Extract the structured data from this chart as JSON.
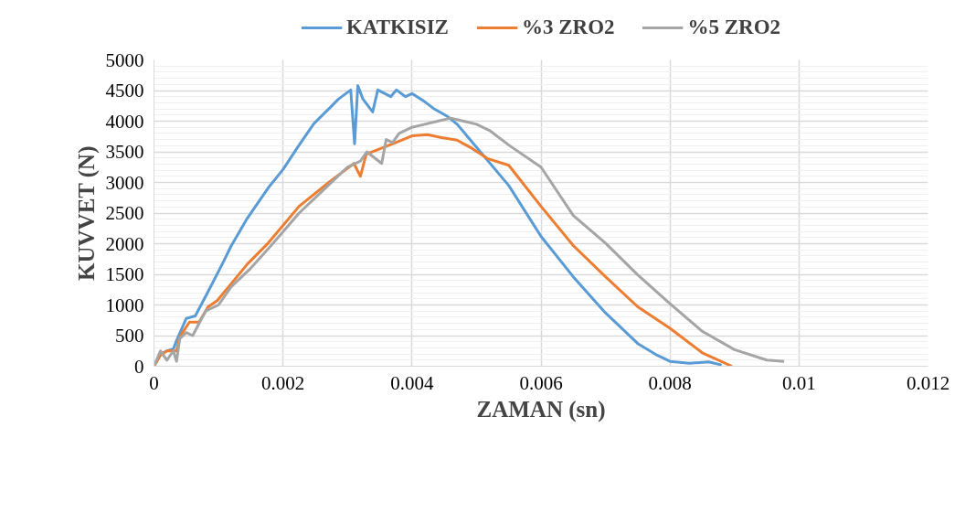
{
  "chart_data": {
    "type": "line",
    "xlabel": "ZAMAN (sn)",
    "ylabel": "KUVVET (N)",
    "xlim": [
      0,
      0.012
    ],
    "xticks": [
      {
        "value": 0,
        "label": "0"
      },
      0.002,
      0.004,
      0.006,
      0.008,
      0.01,
      0.012
    ],
    "ylim": [
      0,
      5000
    ],
    "yticks": [
      0,
      500,
      1000,
      1500,
      2000,
      2500,
      3000,
      3500,
      4000,
      4500,
      5000
    ],
    "grid": true,
    "legend": "top",
    "marker": "none",
    "line_style": "solid",
    "series": [
      {
        "name": "KATKISIZ",
        "color": "#5b9bd5",
        "x": [
          0,
          0.0001,
          0.0002,
          0.0003,
          0.00035,
          0.0005,
          0.00064,
          0.00084,
          0.00106,
          0.0012,
          0.00145,
          0.00177,
          0.002,
          0.00225,
          0.00248,
          0.00272,
          0.00286,
          0.00305,
          0.00311,
          0.00316,
          0.00324,
          0.00339,
          0.00347,
          0.00367,
          0.00376,
          0.0039,
          0.004,
          0.00418,
          0.00433,
          0.00456,
          0.0047,
          0.0055,
          0.006,
          0.0065,
          0.007,
          0.0075,
          0.0078,
          0.008,
          0.0083,
          0.0086,
          0.0088
        ],
        "values": [
          0,
          200,
          250,
          280,
          420,
          780,
          820,
          1220,
          1670,
          1970,
          2420,
          2910,
          3210,
          3610,
          3960,
          4210,
          4360,
          4510,
          3630,
          4580,
          4360,
          4150,
          4510,
          4400,
          4510,
          4400,
          4450,
          4330,
          4210,
          4070,
          3950,
          2950,
          2120,
          1460,
          870,
          370,
          180,
          80,
          50,
          70,
          20
        ]
      },
      {
        "name": "%3 ZRO2",
        "color": "#ed7d31",
        "x": [
          0,
          0.0001,
          0.0002,
          0.00035,
          0.0004,
          0.00055,
          0.0007,
          0.00084,
          0.00098,
          0.00116,
          0.00145,
          0.00177,
          0.00225,
          0.00272,
          0.0031,
          0.0032,
          0.00329,
          0.00375,
          0.004,
          0.00424,
          0.00446,
          0.0047,
          0.00494,
          0.00517,
          0.0055,
          0.006,
          0.0065,
          0.007,
          0.0075,
          0.008,
          0.0085,
          0.00896
        ],
        "values": [
          0,
          180,
          250,
          250,
          480,
          720,
          720,
          970,
          1070,
          1300,
          1670,
          2010,
          2610,
          3010,
          3310,
          3100,
          3460,
          3650,
          3760,
          3780,
          3730,
          3690,
          3550,
          3390,
          3280,
          2610,
          1970,
          1460,
          970,
          620,
          220,
          0
        ]
      },
      {
        "name": "%5 ZRO2",
        "color": "#a5a5a5",
        "x": [
          0,
          0.0001,
          0.0002,
          0.0003,
          0.00035,
          0.0004,
          0.0005,
          0.0006,
          0.0008,
          0.001,
          0.0012,
          0.0015,
          0.0018,
          0.00225,
          0.0027,
          0.003,
          0.0032,
          0.0033,
          0.00353,
          0.0036,
          0.0037,
          0.0038,
          0.004,
          0.0042,
          0.0044,
          0.0046,
          0.0048,
          0.005,
          0.0052,
          0.0055,
          0.006,
          0.0065,
          0.007,
          0.0075,
          0.008,
          0.0085,
          0.009,
          0.0095,
          0.00977
        ],
        "values": [
          0,
          250,
          100,
          250,
          80,
          450,
          550,
          500,
          900,
          1000,
          1300,
          1600,
          1950,
          2500,
          2950,
          3250,
          3350,
          3500,
          3310,
          3700,
          3650,
          3800,
          3900,
          3950,
          4000,
          4050,
          4000,
          3950,
          3850,
          3610,
          3250,
          2460,
          2010,
          1490,
          1020,
          570,
          270,
          100,
          80
        ]
      }
    ]
  }
}
